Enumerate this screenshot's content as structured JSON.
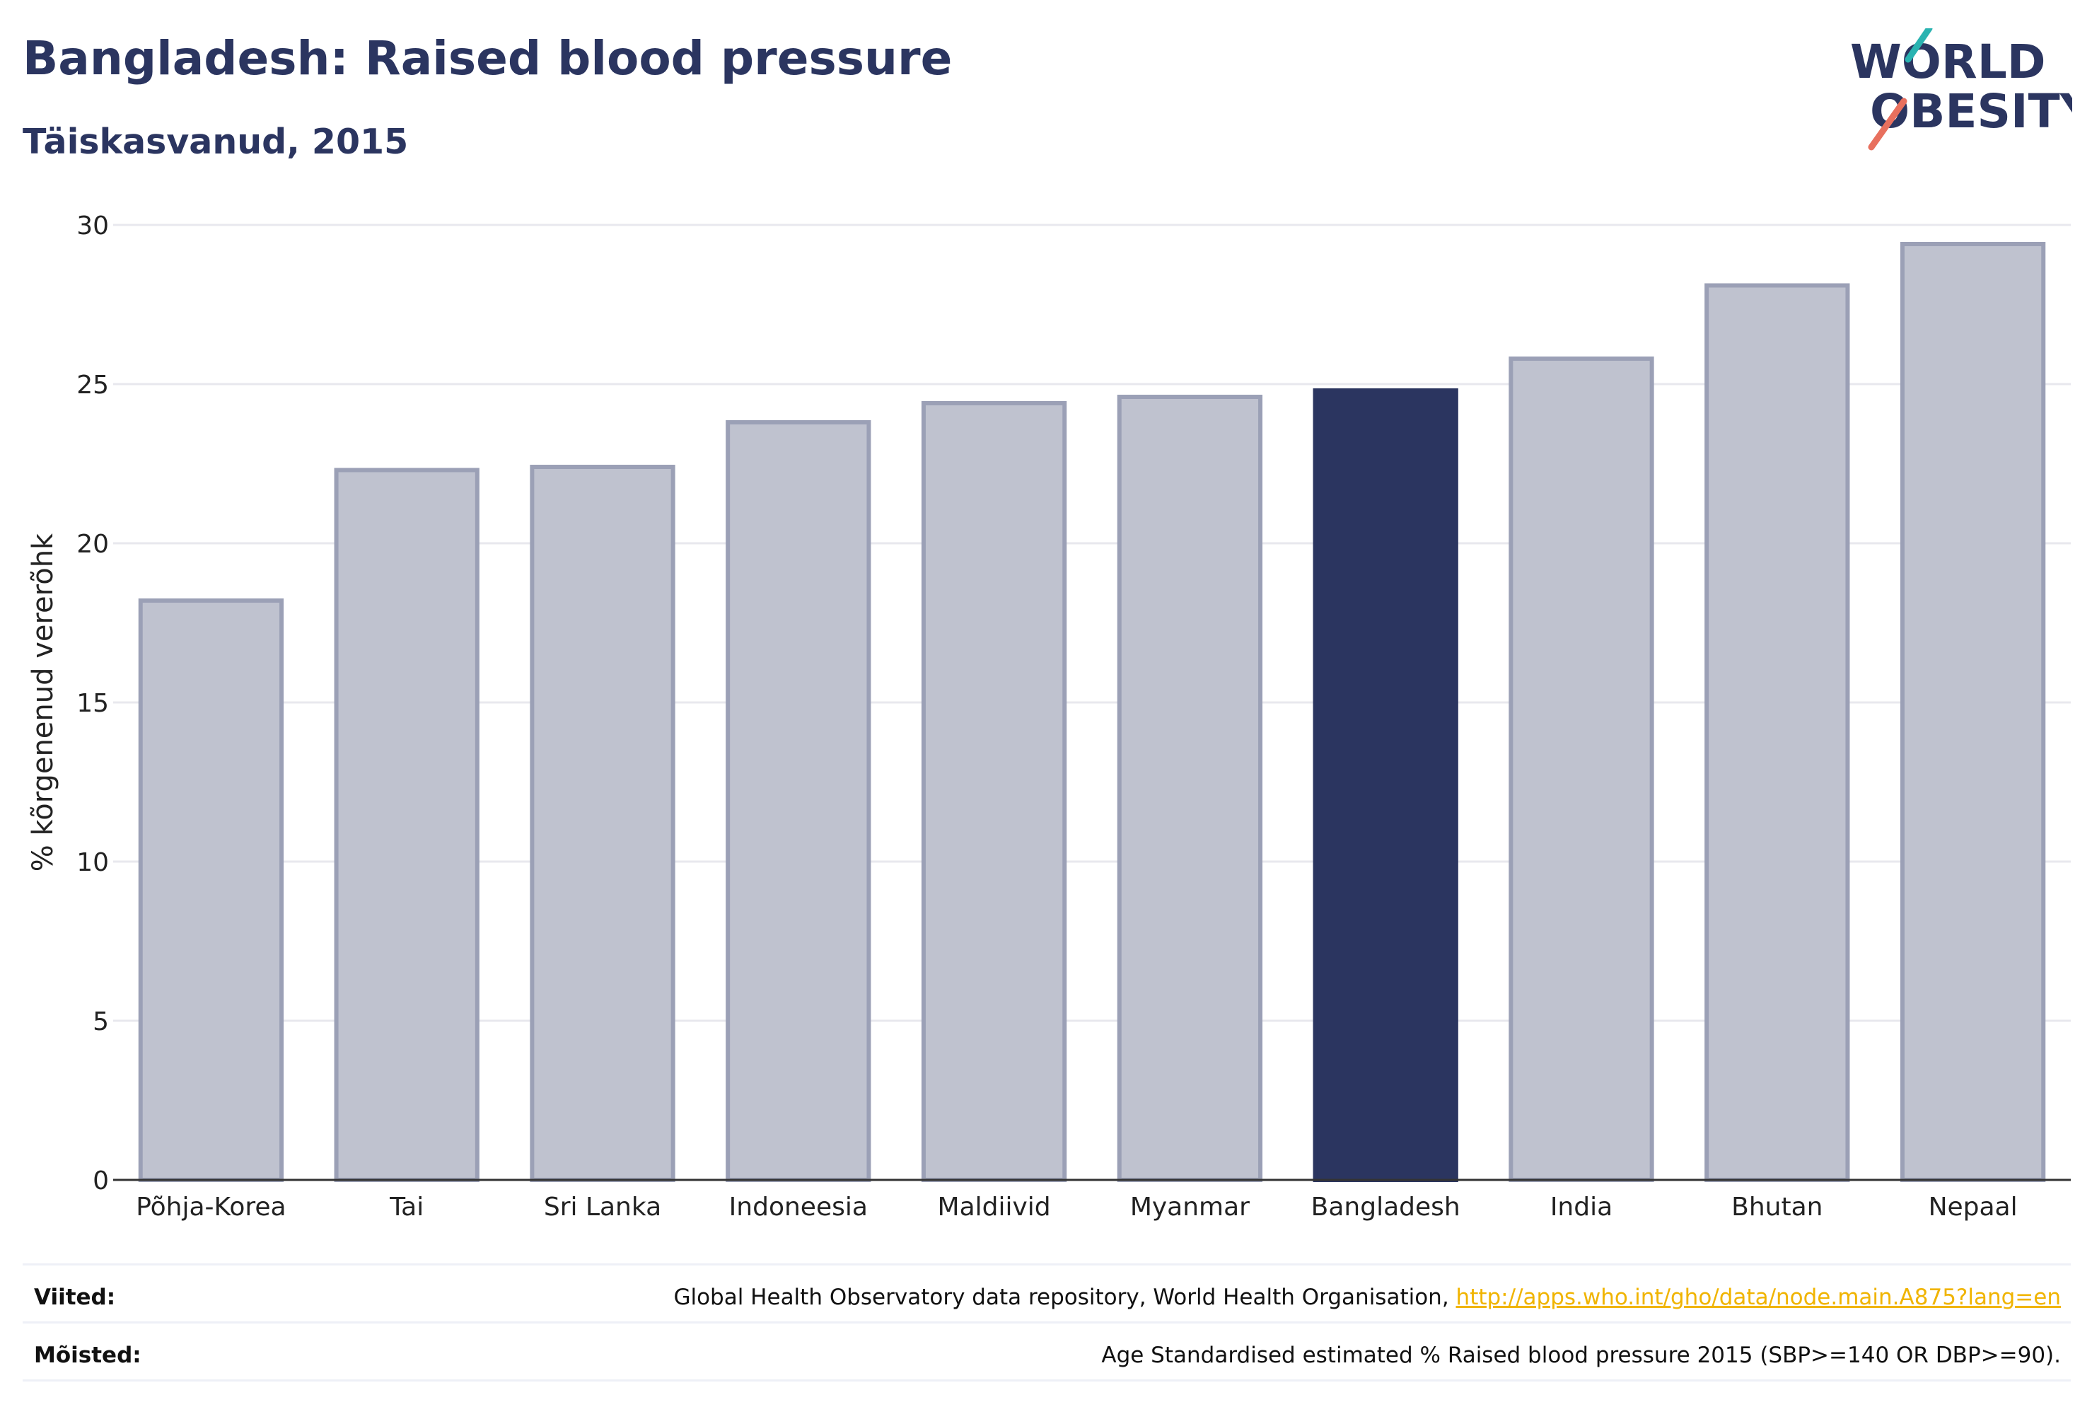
{
  "header": {
    "title": "Bangladesh: Raised blood pressure",
    "subtitle": "Täiskasvanud, 2015"
  },
  "logo": {
    "line1": "WORLD",
    "line2": "OBESITY"
  },
  "colors": {
    "highlight": "#2b3560",
    "bar": "#bfc2cf",
    "bar_border": "#9ba0b6",
    "grid": "#e8e8ee",
    "logo_teal": "#2ab3b1",
    "logo_coral": "#e8705e",
    "link": "#f0b400"
  },
  "chart_data": {
    "type": "bar",
    "categories": [
      "Põhja-Korea",
      "Tai",
      "Sri Lanka",
      "Indoneesia",
      "Maldiivid",
      "Myanmar",
      "Bangladesh",
      "India",
      "Bhutan",
      "Nepaal"
    ],
    "values": [
      18.2,
      22.3,
      22.4,
      23.8,
      24.4,
      24.6,
      24.8,
      25.8,
      28.1,
      29.4
    ],
    "highlight": "Bangladesh",
    "ylabel": "% kõrgenenud vererõhk",
    "xlabel": "",
    "ylim": [
      0,
      30
    ],
    "yticks": [
      0,
      5,
      10,
      15,
      20,
      25,
      30
    ],
    "grid": true
  },
  "footer": {
    "references_label": "Viited:",
    "references_text": "Global Health Observatory data repository, World Health Organisation, ",
    "references_link": "http://apps.who.int/gho/data/node.main.A875?lang=en",
    "definitions_label": "Mõisted:",
    "definitions_text": "Age Standardised estimated % Raised blood pressure 2015 (SBP>=140 OR DBP>=90)."
  }
}
